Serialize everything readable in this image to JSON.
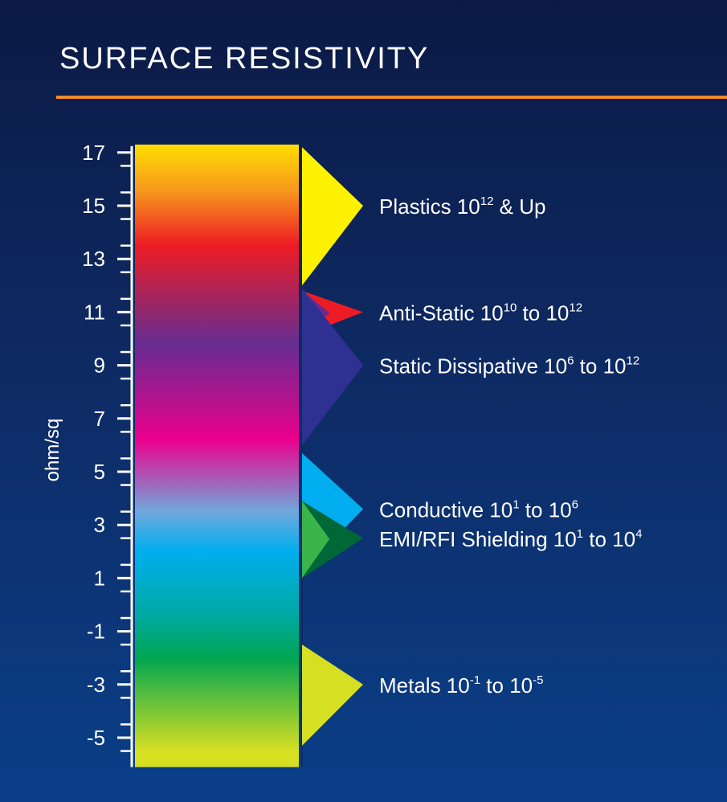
{
  "title": "SURFACE RESISTIVITY",
  "colors": {
    "accent_rule": "#f08a2c",
    "background_top": "#0b1a45",
    "background_bottom": "#0a3f88"
  },
  "chart_data": {
    "type": "range-diagram",
    "ylabel": "ohm/sq",
    "ylim": [
      -5.5,
      17.5
    ],
    "y_ticks": [
      17,
      15,
      13,
      11,
      9,
      7,
      5,
      3,
      1,
      -1,
      -3,
      -5
    ],
    "scale_gradient": [
      {
        "value": 17.3,
        "color": "#ffde00"
      },
      {
        "value": 15.5,
        "color": "#f7941d"
      },
      {
        "value": 13.5,
        "color": "#ed1c24"
      },
      {
        "value": 9.8,
        "color": "#662d91"
      },
      {
        "value": 6.2,
        "color": "#ec008c"
      },
      {
        "value": 3.5,
        "color": "#6fa8dc"
      },
      {
        "value": 2.0,
        "color": "#00aeef"
      },
      {
        "value": -0.5,
        "color": "#00a99d"
      },
      {
        "value": -2.0,
        "color": "#00a651"
      },
      {
        "value": -5.5,
        "color": "#d7df23"
      }
    ],
    "ranges": [
      {
        "name": "Plastics",
        "label_parts": [
          "Plastics 10",
          "12",
          " & Up"
        ],
        "low": 12,
        "high": 17.2,
        "color": "#fff200",
        "label_y": 15,
        "label_x": 472
      },
      {
        "name": "Anti-Static",
        "label_parts": [
          "Anti-Static 10",
          "10",
          " to 10",
          "12"
        ],
        "low": 10.1,
        "high": 11.8,
        "color": "#662d91",
        "color2": "#ed1c24",
        "label_y": 11,
        "label_x": 472
      },
      {
        "name": "Static Dissipative",
        "label_parts": [
          "Static Dissipative 10",
          "6",
          " to 10",
          "12"
        ],
        "low": 6,
        "high": 11.9,
        "color": "#2e3192",
        "label_y": 9,
        "label_x": 472
      },
      {
        "name": "Conductive",
        "label_parts": [
          "Conductive 10",
          "1",
          " to 10",
          "6"
        ],
        "low": 1.2,
        "high": 5.7,
        "color": "#00aeef",
        "label_y": 3.6,
        "label_x": 472
      },
      {
        "name": "EMI/RFI Shielding",
        "label_parts": [
          "EMI/RFI Shielding 10",
          "1",
          " to 10",
          "4"
        ],
        "low": 1,
        "high": 3.9,
        "color": "#39b54a",
        "color2": "#006837",
        "label_y": 2.5,
        "label_x": 472
      },
      {
        "name": "Metals",
        "label_parts": [
          "Metals 10",
          "-1",
          " to 10",
          "-5"
        ],
        "low": -5.3,
        "high": -1.5,
        "color": "#d7df23",
        "label_y": -3,
        "label_x": 472
      }
    ]
  }
}
